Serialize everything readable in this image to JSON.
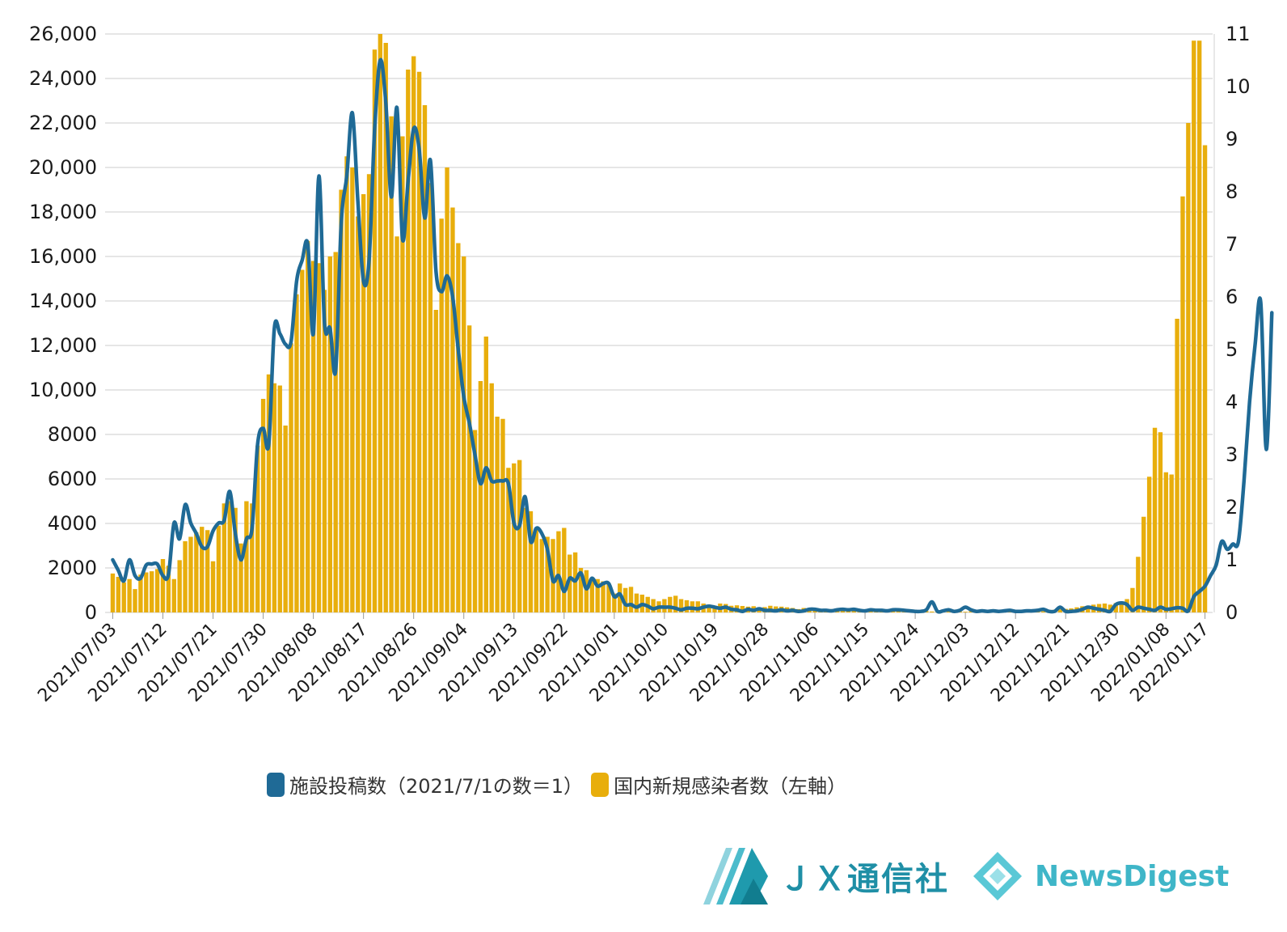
{
  "chart_data": {
    "type": "bar",
    "title": "",
    "colors": {
      "bar": "#E8AE0C",
      "line": "#1F6A96",
      "grid": "#e6e6e6"
    },
    "y_left": {
      "ticks": [
        "0",
        "2000",
        "4000",
        "6000",
        "8000",
        "10,000",
        "12,000",
        "14,000",
        "16,000",
        "18,000",
        "20,000",
        "22,000",
        "24,000",
        "26,000"
      ],
      "ylim": [
        0,
        26000
      ]
    },
    "y_right": {
      "ticks": [
        "0",
        "1",
        "2",
        "3",
        "4",
        "5",
        "6",
        "7",
        "8",
        "9",
        "10",
        "11"
      ],
      "ylim": [
        0,
        11
      ]
    },
    "x_ticks": [
      "2021/07/03",
      "2021/07/12",
      "2021/07/21",
      "2021/07/30",
      "2021/08/08",
      "2021/08/17",
      "2021/08/26",
      "2021/09/04",
      "2021/09/13",
      "2021/09/22",
      "2021/10/01",
      "2021/10/10",
      "2021/10/19",
      "2021/10/28",
      "2021/11/06",
      "2021/11/15",
      "2021/11/24",
      "2021/12/03",
      "2021/12/12",
      "2021/12/21",
      "2021/12/30",
      "2022/01/08",
      "2022/01/17"
    ],
    "x_start_label": "2021/07/03",
    "series": [
      {
        "name": "国内新規感染者数（左軸）",
        "axis": "left",
        "kind": "bar",
        "values": [
          1750,
          1600,
          1350,
          1500,
          1050,
          1700,
          1800,
          1850,
          1950,
          2400,
          2100,
          1500,
          2350,
          3200,
          3400,
          3600,
          3850,
          3700,
          2300,
          3900,
          4900,
          5000,
          4700,
          3100,
          5000,
          4900,
          7500,
          9600,
          10700,
          10300,
          10200,
          8400,
          12100,
          14300,
          15400,
          16700,
          15800,
          15700,
          14500,
          16000,
          16200,
          19000,
          20500,
          20000,
          17800,
          18800,
          19700,
          25300,
          26000,
          25600,
          22300,
          16900,
          21400,
          24400,
          25000,
          24300,
          22800,
          19300,
          13600,
          17700,
          20000,
          18200,
          16600,
          16000,
          12900,
          8200,
          10400,
          12400,
          10300,
          8800,
          8700,
          6500,
          6700,
          6850,
          4700,
          4550,
          3800,
          3300,
          3400,
          3300,
          3650,
          3800,
          2600,
          2700,
          2000,
          1900,
          1550,
          1500,
          1400,
          1300,
          850,
          1300,
          1100,
          1150,
          850,
          800,
          700,
          600,
          500,
          600,
          700,
          750,
          600,
          550,
          500,
          500,
          400,
          350,
          300,
          400,
          380,
          300,
          320,
          290,
          260,
          280,
          230,
          240,
          300,
          270,
          260,
          230,
          200,
          150,
          200,
          200,
          150,
          160,
          130,
          150,
          170,
          140,
          140,
          110,
          120,
          120,
          100,
          90,
          90,
          80,
          70,
          60,
          80,
          70,
          60,
          50,
          60,
          40,
          60,
          70,
          50,
          40,
          40,
          30,
          50,
          60,
          50,
          50,
          40,
          30,
          50,
          40,
          50,
          60,
          40,
          50,
          50,
          50,
          100,
          120,
          140,
          160,
          180,
          230,
          280,
          300,
          350,
          380,
          400,
          350,
          420,
          450,
          600,
          1100,
          2500,
          4300,
          6100,
          8300,
          8100,
          6300,
          6200,
          13200,
          18700,
          22000,
          25700,
          25700,
          21000
        ]
      },
      {
        "name": "施設投稿数（2021/7/1の数＝1）",
        "axis": "right",
        "kind": "line",
        "values": [
          1.0,
          0.8,
          0.6,
          1.0,
          0.7,
          0.65,
          0.9,
          0.92,
          0.92,
          0.7,
          0.72,
          1.7,
          1.4,
          2.05,
          1.7,
          1.5,
          1.25,
          1.25,
          1.55,
          1.7,
          1.75,
          2.3,
          1.5,
          1.0,
          1.4,
          1.6,
          3.2,
          3.5,
          3.2,
          5.4,
          5.3,
          5.1,
          5.15,
          6.3,
          6.7,
          7.0,
          5.3,
          8.3,
          5.5,
          5.4,
          4.6,
          7.4,
          8.3,
          9.5,
          7.8,
          6.3,
          6.7,
          9.2,
          10.5,
          9.7,
          7.9,
          9.6,
          7.1,
          8.2,
          9.2,
          8.8,
          7.5,
          8.6,
          6.5,
          6.1,
          6.4,
          6.0,
          5.0,
          4.1,
          3.6,
          3.0,
          2.45,
          2.75,
          2.5,
          2.5,
          2.5,
          2.45,
          1.7,
          1.65,
          2.2,
          1.35,
          1.6,
          1.5,
          1.2,
          0.6,
          0.7,
          0.4,
          0.65,
          0.6,
          0.75,
          0.45,
          0.65,
          0.5,
          0.55,
          0.55,
          0.3,
          0.35,
          0.15,
          0.15,
          0.1,
          0.15,
          0.12,
          0.07,
          0.1,
          0.1,
          0.1,
          0.08,
          0.05,
          0.08,
          0.08,
          0.07,
          0.1,
          0.12,
          0.1,
          0.08,
          0.1,
          0.06,
          0.05,
          0.02,
          0.06,
          0.04,
          0.07,
          0.04,
          0.04,
          0.03,
          0.05,
          0.03,
          0.04,
          0.02,
          0.03,
          0.06,
          0.06,
          0.04,
          0.04,
          0.03,
          0.05,
          0.06,
          0.05,
          0.06,
          0.04,
          0.03,
          0.05,
          0.04,
          0.04,
          0.03,
          0.05,
          0.05,
          0.04,
          0.03,
          0.02,
          0.02,
          0.05,
          0.2,
          0.02,
          0.03,
          0.05,
          0.02,
          0.04,
          0.1,
          0.05,
          0.02,
          0.03,
          0.02,
          0.03,
          0.02,
          0.03,
          0.04,
          0.02,
          0.02,
          0.03,
          0.03,
          0.04,
          0.06,
          0.02,
          0.02,
          0.1,
          0.02,
          0.02,
          0.03,
          0.06,
          0.1,
          0.08,
          0.06,
          0.04,
          0.02,
          0.15,
          0.18,
          0.15,
          0.04,
          0.1,
          0.08,
          0.06,
          0.04,
          0.1,
          0.06,
          0.07,
          0.09,
          0.08,
          0.03,
          0.3,
          0.4,
          0.5,
          0.7,
          0.9,
          1.35,
          1.2,
          1.3,
          1.35,
          2.5,
          4.0,
          5.1,
          5.9,
          3.1,
          5.7
        ]
      }
    ]
  },
  "legend": {
    "items": [
      {
        "label": "施設投稿数（2021/7/1の数＝1）",
        "color": "#1F6A96"
      },
      {
        "label": "国内新規感染者数（左軸）",
        "color": "#E8AE0C"
      }
    ]
  },
  "branding": {
    "jx_logo_icon": "jx-stripes-icon",
    "jx_text": "ＪＸ通信社",
    "newsdigest_icon": "newsdigest-diamond-icon",
    "newsdigest_text": "NewsDigest"
  }
}
